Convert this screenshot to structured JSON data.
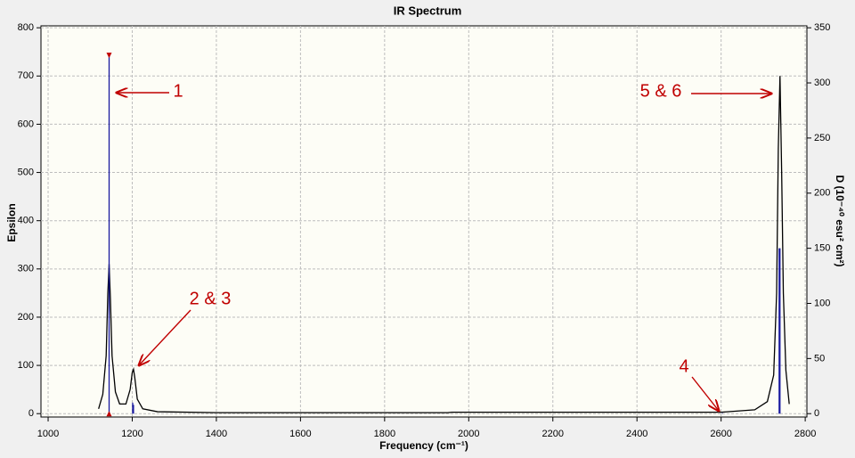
{
  "chart_data": {
    "type": "spectrum",
    "title": "IR Spectrum",
    "x_label": "Frequency (cm⁻¹)",
    "y_label": "Epsilon",
    "y2_label": "D (10⁻⁴⁰ esu² cm²)",
    "xlim": [
      983,
      2804
    ],
    "xticks": [
      1000,
      1200,
      1400,
      1600,
      1800,
      2000,
      2200,
      2400,
      2600,
      2800
    ],
    "ylim": [
      -7,
      804
    ],
    "yticks": [
      0,
      100,
      200,
      300,
      400,
      500,
      600,
      700,
      800
    ],
    "y2lim": [
      -3.06,
      351.75
    ],
    "y2ticks": [
      0,
      50,
      100,
      150,
      200,
      250,
      300,
      350
    ],
    "grid": true,
    "series": [
      {
        "color": "#000000",
        "x": [
          1120,
          1130,
          1138,
          1142,
          1145,
          1148,
          1152,
          1160,
          1170,
          1185,
          1195,
          1200,
          1203,
          1206,
          1212,
          1225,
          1260,
          1400,
          1950,
          1960,
          2600,
          2680,
          2710,
          2725,
          2732,
          2736,
          2740,
          2744,
          2748,
          2754,
          2762
        ],
        "values": [
          10,
          40,
          120,
          250,
          310,
          240,
          120,
          45,
          20,
          20,
          50,
          85,
          92,
          75,
          30,
          10,
          4,
          2,
          2,
          3,
          3,
          8,
          25,
          80,
          250,
          550,
          700,
          500,
          250,
          90,
          20
        ]
      }
    ],
    "sticks": {
      "color": "#1a1aa0",
      "axis": "y2",
      "x": [
        1145,
        1201,
        1203,
        2603,
        2738,
        2740
      ],
      "values": [
        325,
        10,
        8,
        0.5,
        150,
        150
      ]
    },
    "annotations": [
      "1",
      "2 & 3",
      "4",
      "5 & 6"
    ]
  }
}
